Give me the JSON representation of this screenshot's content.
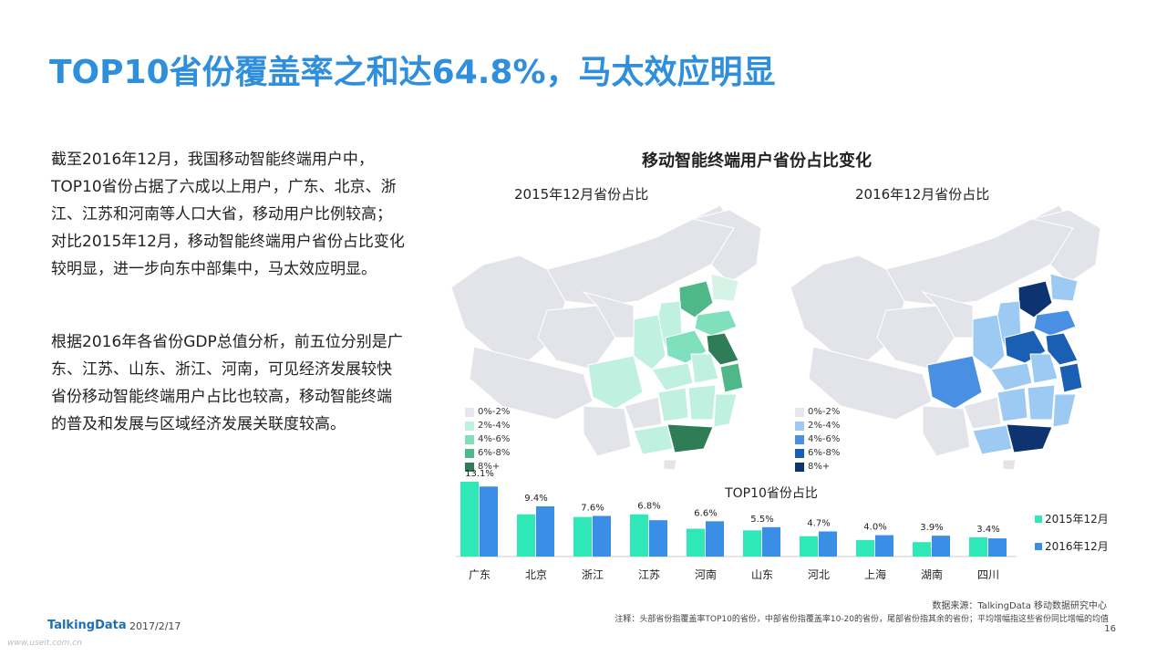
{
  "title": "TOP10省份覆盖率之和达64.8%，马太效应明显",
  "paragraphs": [
    "截至2016年12月，我国移动智能终端用户中，TOP10省份占据了六成以上用户，广东、北京、浙江、江苏和河南等人口大省，移动用户比例较高；对比2015年12月，移动智能终端用户省份占比变化较明显，进一步向东中部集中，马太效应明显。",
    "根据2016年各省份GDP总值分析，前五位分别是广东、江苏、山东、浙江、河南，可见经济发展较快省份移动智能终端用户占比也较高，移动智能终端的普及和发展与区域经济发展关联度较高。"
  ],
  "maps": {
    "title": "移动智能终端用户省份占比变化",
    "map_2015_title": "2015年12月省份占比",
    "map_2016_title": "2016年12月省份占比",
    "legend_labels": [
      "0%-2%",
      "2%-4%",
      "4%-6%",
      "6%-8%",
      "8%+"
    ],
    "colors_2015": [
      "#e6e6ee",
      "#bff0e0",
      "#7fe0bd",
      "#4fb889",
      "#2e7d57"
    ],
    "colors_2016": [
      "#e6e6ee",
      "#9ccaf2",
      "#4a90e2",
      "#1a5fb4",
      "#0d3470"
    ]
  },
  "chart_data": {
    "type": "bar",
    "title": "TOP10省份占比",
    "categories": [
      "广东",
      "北京",
      "浙江",
      "江苏",
      "河南",
      "山东",
      "河北",
      "上海",
      "湖南",
      "四川"
    ],
    "series": [
      {
        "name": "2015年12月",
        "color": "#2ee8b8",
        "values": [
          14.0,
          7.9,
          7.4,
          7.9,
          5.2,
          4.9,
          3.8,
          3.1,
          2.7,
          3.6
        ]
      },
      {
        "name": "2016年12月",
        "color": "#3a8ee6",
        "values": [
          13.1,
          9.4,
          7.6,
          6.8,
          6.6,
          5.5,
          4.7,
          4.0,
          3.9,
          3.4
        ]
      }
    ],
    "data_labels": [
      "13.1%",
      "9.4%",
      "7.6%",
      "6.8%",
      "6.6%",
      "5.5%",
      "4.7%",
      "4.0%",
      "3.9%",
      "3.4%"
    ],
    "ylim": [
      0,
      14
    ],
    "legend_position": "right"
  },
  "footer": {
    "brand": "TalkingData",
    "date": "2017/2/17",
    "source": "数据来源：TalkingData 移动数据研究中心",
    "note": "注释：头部省份指覆盖率TOP10的省份，中部省份指覆盖率10-20的省份，尾部省份指其余的省份；平均增幅指这些省份同比增幅的均值",
    "page": "16",
    "watermark": "www.useit.com.cn"
  }
}
